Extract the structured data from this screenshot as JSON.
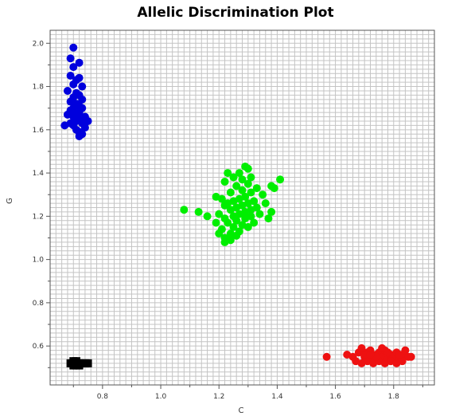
{
  "chart_data": {
    "type": "scatter",
    "title": "Allelic Discrimination Plot",
    "xlabel": "C",
    "ylabel": "G",
    "xlim": [
      0.62,
      1.94
    ],
    "ylim": [
      0.42,
      2.06
    ],
    "xticks": [
      0.8,
      1.0,
      1.2,
      1.4,
      1.6,
      1.8
    ],
    "yticks": [
      0.6,
      0.8,
      1.0,
      1.2,
      1.4,
      1.6,
      1.8,
      2.0
    ],
    "grid": true,
    "legend": "none",
    "series": [
      {
        "color": "#0000dd",
        "marker": "circle",
        "points": [
          [
            0.7,
            1.98
          ],
          [
            0.69,
            1.93
          ],
          [
            0.72,
            1.91
          ],
          [
            0.7,
            1.89
          ],
          [
            0.69,
            1.85
          ],
          [
            0.72,
            1.84
          ],
          [
            0.71,
            1.83
          ],
          [
            0.7,
            1.81
          ],
          [
            0.73,
            1.8
          ],
          [
            0.68,
            1.78
          ],
          [
            0.71,
            1.77
          ],
          [
            0.72,
            1.76
          ],
          [
            0.7,
            1.75
          ],
          [
            0.73,
            1.74
          ],
          [
            0.69,
            1.73
          ],
          [
            0.71,
            1.72
          ],
          [
            0.72,
            1.71
          ],
          [
            0.7,
            1.7
          ],
          [
            0.73,
            1.7
          ],
          [
            0.69,
            1.69
          ],
          [
            0.72,
            1.68
          ],
          [
            0.71,
            1.67
          ],
          [
            0.68,
            1.67
          ],
          [
            0.7,
            1.66
          ],
          [
            0.74,
            1.66
          ],
          [
            0.72,
            1.65
          ],
          [
            0.71,
            1.64
          ],
          [
            0.75,
            1.64
          ],
          [
            0.69,
            1.63
          ],
          [
            0.73,
            1.63
          ],
          [
            0.7,
            1.62
          ],
          [
            0.67,
            1.62
          ],
          [
            0.74,
            1.61
          ],
          [
            0.71,
            1.6
          ],
          [
            0.72,
            1.59
          ],
          [
            0.73,
            1.58
          ],
          [
            0.72,
            1.57
          ]
        ]
      },
      {
        "color": "#00ee00",
        "marker": "circle",
        "points": [
          [
            1.29,
            1.43
          ],
          [
            1.3,
            1.42
          ],
          [
            1.27,
            1.4
          ],
          [
            1.23,
            1.4
          ],
          [
            1.31,
            1.38
          ],
          [
            1.25,
            1.38
          ],
          [
            1.28,
            1.37
          ],
          [
            1.41,
            1.37
          ],
          [
            1.22,
            1.36
          ],
          [
            1.3,
            1.35
          ],
          [
            1.38,
            1.34
          ],
          [
            1.26,
            1.34
          ],
          [
            1.33,
            1.33
          ],
          [
            1.39,
            1.33
          ],
          [
            1.28,
            1.32
          ],
          [
            1.24,
            1.31
          ],
          [
            1.31,
            1.31
          ],
          [
            1.35,
            1.3
          ],
          [
            1.19,
            1.29
          ],
          [
            1.29,
            1.29
          ],
          [
            1.21,
            1.28
          ],
          [
            1.27,
            1.28
          ],
          [
            1.32,
            1.27
          ],
          [
            1.25,
            1.27
          ],
          [
            1.3,
            1.26
          ],
          [
            1.23,
            1.26
          ],
          [
            1.36,
            1.26
          ],
          [
            1.28,
            1.25
          ],
          [
            1.22,
            1.25
          ],
          [
            1.33,
            1.24
          ],
          [
            1.26,
            1.24
          ],
          [
            1.31,
            1.23
          ],
          [
            1.08,
            1.23
          ],
          [
            1.24,
            1.23
          ],
          [
            1.29,
            1.22
          ],
          [
            1.38,
            1.22
          ],
          [
            1.13,
            1.22
          ],
          [
            1.27,
            1.21
          ],
          [
            1.2,
            1.21
          ],
          [
            1.34,
            1.21
          ],
          [
            1.25,
            1.2
          ],
          [
            1.31,
            1.2
          ],
          [
            1.16,
            1.2
          ],
          [
            1.22,
            1.19
          ],
          [
            1.29,
            1.19
          ],
          [
            1.37,
            1.19
          ],
          [
            1.26,
            1.18
          ],
          [
            1.23,
            1.17
          ],
          [
            1.32,
            1.17
          ],
          [
            1.19,
            1.17
          ],
          [
            1.28,
            1.16
          ],
          [
            1.25,
            1.15
          ],
          [
            1.3,
            1.15
          ],
          [
            1.21,
            1.14
          ],
          [
            1.27,
            1.13
          ],
          [
            1.24,
            1.12
          ],
          [
            1.2,
            1.12
          ],
          [
            1.26,
            1.11
          ],
          [
            1.22,
            1.1
          ],
          [
            1.24,
            1.09
          ],
          [
            1.22,
            1.08
          ]
        ]
      },
      {
        "color": "#ee1111",
        "marker": "circle",
        "points": [
          [
            1.57,
            0.55
          ],
          [
            1.64,
            0.56
          ],
          [
            1.66,
            0.55
          ],
          [
            1.68,
            0.57
          ],
          [
            1.69,
            0.59
          ],
          [
            1.7,
            0.55
          ],
          [
            1.71,
            0.57
          ],
          [
            1.72,
            0.58
          ],
          [
            1.73,
            0.54
          ],
          [
            1.74,
            0.56
          ],
          [
            1.75,
            0.57
          ],
          [
            1.76,
            0.55
          ],
          [
            1.77,
            0.58
          ],
          [
            1.78,
            0.54
          ],
          [
            1.79,
            0.56
          ],
          [
            1.8,
            0.55
          ],
          [
            1.81,
            0.57
          ],
          [
            1.82,
            0.54
          ],
          [
            1.83,
            0.56
          ],
          [
            1.84,
            0.58
          ],
          [
            1.85,
            0.55
          ],
          [
            1.86,
            0.55
          ],
          [
            1.67,
            0.53
          ],
          [
            1.69,
            0.52
          ],
          [
            1.71,
            0.53
          ],
          [
            1.73,
            0.52
          ],
          [
            1.75,
            0.53
          ],
          [
            1.77,
            0.52
          ],
          [
            1.79,
            0.53
          ],
          [
            1.81,
            0.52
          ],
          [
            1.83,
            0.53
          ],
          [
            1.7,
            0.56
          ],
          [
            1.74,
            0.55
          ],
          [
            1.78,
            0.57
          ],
          [
            1.82,
            0.56
          ],
          [
            1.76,
            0.59
          ],
          [
            1.72,
            0.56
          ]
        ]
      },
      {
        "color": "#000000",
        "marker": "square",
        "points": [
          [
            0.69,
            0.52
          ],
          [
            0.7,
            0.53
          ],
          [
            0.71,
            0.51
          ],
          [
            0.72,
            0.52
          ],
          [
            0.73,
            0.52
          ],
          [
            0.71,
            0.53
          ],
          [
            0.74,
            0.52
          ],
          [
            0.7,
            0.51
          ],
          [
            0.72,
            0.51
          ],
          [
            0.75,
            0.52
          ]
        ]
      }
    ]
  }
}
